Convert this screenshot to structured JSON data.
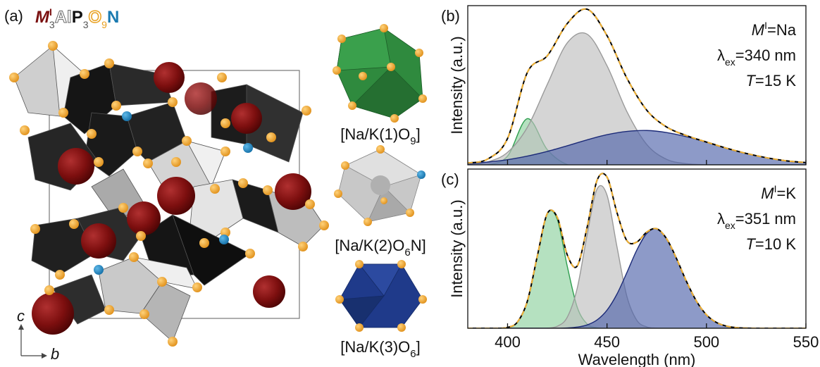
{
  "panel_a": {
    "label": "(a)",
    "formula": [
      "M",
      "I",
      "3",
      "Al",
      "P",
      "3",
      "O",
      "9",
      "N"
    ],
    "axes": {
      "vertical": "c",
      "horizontal": "b"
    },
    "polyhedra": [
      {
        "parts": [
          "[Na/K(1)O",
          "9",
          "]"
        ],
        "color": "#2f8a3e"
      },
      {
        "parts": [
          "[Na/K(2)O",
          "6",
          "N]"
        ],
        "color": "#b9b9b9"
      },
      {
        "parts": [
          "[Na/K(3)O",
          "6",
          "]"
        ],
        "color": "#1f3a8a"
      }
    ]
  },
  "chart_data": [
    {
      "type": "line",
      "label": "(b)",
      "ylabel": "Intensity (a.u.)",
      "annotation": {
        "metal": [
          "M",
          "I",
          "=Na"
        ],
        "excitation": [
          "λ",
          "ex",
          "=340 nm"
        ],
        "temperature": [
          "T",
          "=15 K"
        ]
      },
      "x": [
        380,
        390,
        400,
        410,
        420,
        430,
        440,
        450,
        460,
        470,
        480,
        490,
        500,
        510,
        520,
        530,
        540,
        550
      ],
      "xlim": [
        380,
        550
      ],
      "xticks": [
        400,
        450,
        500,
        550
      ],
      "ylim": [
        0,
        1.02
      ],
      "series": [
        {
          "color": "#2e9e4f",
          "fill": "rgba(120,200,140,0.55)",
          "values": [
            0,
            0,
            0.056,
            0.296,
            0.097,
            0.002,
            0,
            0,
            0,
            0,
            0,
            0,
            0,
            0,
            0,
            0,
            0,
            0
          ]
        },
        {
          "color": "#9a9a9a",
          "fill": "rgba(190,190,190,0.65)",
          "values": [
            0.003,
            0.019,
            0.08,
            0.241,
            0.516,
            0.781,
            0.837,
            0.635,
            0.341,
            0.13,
            0.035,
            0.007,
            0.001,
            0,
            0,
            0,
            0,
            0
          ]
        },
        {
          "color": "#1c2b78",
          "fill": "rgba(80,100,170,0.65)",
          "values": [
            0.009,
            0.018,
            0.033,
            0.056,
            0.086,
            0.122,
            0.16,
            0.193,
            0.214,
            0.22,
            0.207,
            0.18,
            0.145,
            0.107,
            0.073,
            0.046,
            0.026,
            0.014
          ]
        },
        {
          "color": "#000000",
          "values": [
            0.012,
            0.037,
            0.169,
            0.593,
            0.699,
            0.905,
            0.997,
            0.828,
            0.555,
            0.35,
            0.242,
            0.187,
            0.146,
            0.107,
            0.073,
            0.046,
            0.026,
            0.014
          ]
        },
        {
          "color": "#f2b233",
          "dash": true,
          "values": [
            0.012,
            0.037,
            0.169,
            0.593,
            0.699,
            0.905,
            0.997,
            0.828,
            0.555,
            0.35,
            0.242,
            0.187,
            0.146,
            0.107,
            0.073,
            0.046,
            0.026,
            0.014
          ]
        }
      ]
    },
    {
      "type": "line",
      "label": "(c)",
      "ylabel": "Intensity (a.u.)",
      "xlabel": "Wavelength (nm)",
      "annotation": {
        "metal": [
          "M",
          "I",
          "=K"
        ],
        "excitation": [
          "λ",
          "ex",
          "=351 nm"
        ],
        "temperature": [
          "T",
          "=10 K"
        ]
      },
      "x": [
        380,
        385,
        390,
        395,
        400,
        405,
        410,
        415,
        420,
        425,
        430,
        435,
        440,
        445,
        450,
        455,
        460,
        465,
        470,
        475,
        480,
        485,
        490,
        495,
        500,
        505,
        510,
        515,
        520,
        525,
        530,
        535,
        540,
        545,
        550
      ],
      "xlim": [
        380,
        550
      ],
      "xticks": [
        400,
        450,
        500,
        550
      ],
      "ylim": [
        0,
        0.96
      ],
      "series": [
        {
          "color": "#2e9e4f",
          "fill": "rgba(120,200,140,0.55)",
          "values": [
            0,
            0,
            0,
            0,
            0.005,
            0.038,
            0.165,
            0.437,
            0.691,
            0.657,
            0.375,
            0.128,
            0.026,
            0.003,
            0,
            0,
            0,
            0,
            0,
            0,
            0,
            0,
            0,
            0,
            0,
            0,
            0,
            0,
            0,
            0,
            0,
            0,
            0,
            0,
            0
          ]
        },
        {
          "color": "#9a9a9a",
          "fill": "rgba(190,190,190,0.65)",
          "values": [
            0,
            0,
            0,
            0,
            0,
            0,
            0,
            0,
            0.001,
            0.012,
            0.066,
            0.24,
            0.562,
            0.839,
            0.803,
            0.492,
            0.192,
            0.048,
            0.008,
            0.001,
            0,
            0,
            0,
            0,
            0,
            0,
            0,
            0,
            0,
            0,
            0,
            0,
            0,
            0,
            0
          ]
        },
        {
          "color": "#1c2b78",
          "fill": "rgba(80,100,170,0.65)",
          "values": [
            0,
            0,
            0,
            0,
            0,
            0,
            0,
            0,
            0,
            0,
            0.002,
            0.007,
            0.02,
            0.05,
            0.109,
            0.206,
            0.336,
            0.472,
            0.572,
            0.599,
            0.539,
            0.419,
            0.281,
            0.163,
            0.081,
            0.035,
            0.013,
            0.004,
            0.001,
            0,
            0,
            0,
            0,
            0,
            0
          ]
        },
        {
          "color": "#000000",
          "values": [
            0,
            0,
            0,
            0,
            0.005,
            0.038,
            0.165,
            0.437,
            0.692,
            0.669,
            0.443,
            0.375,
            0.608,
            0.892,
            0.912,
            0.698,
            0.528,
            0.52,
            0.58,
            0.6,
            0.539,
            0.419,
            0.281,
            0.163,
            0.081,
            0.035,
            0.013,
            0.004,
            0.001,
            0,
            0,
            0,
            0,
            0,
            0
          ]
        },
        {
          "color": "#f2b233",
          "dash": true,
          "values": [
            0,
            0,
            0,
            0,
            0.005,
            0.038,
            0.165,
            0.437,
            0.692,
            0.669,
            0.443,
            0.375,
            0.608,
            0.892,
            0.912,
            0.698,
            0.528,
            0.52,
            0.58,
            0.6,
            0.539,
            0.419,
            0.281,
            0.163,
            0.081,
            0.035,
            0.013,
            0.004,
            0.001,
            0,
            0,
            0,
            0,
            0,
            0
          ]
        }
      ]
    }
  ]
}
